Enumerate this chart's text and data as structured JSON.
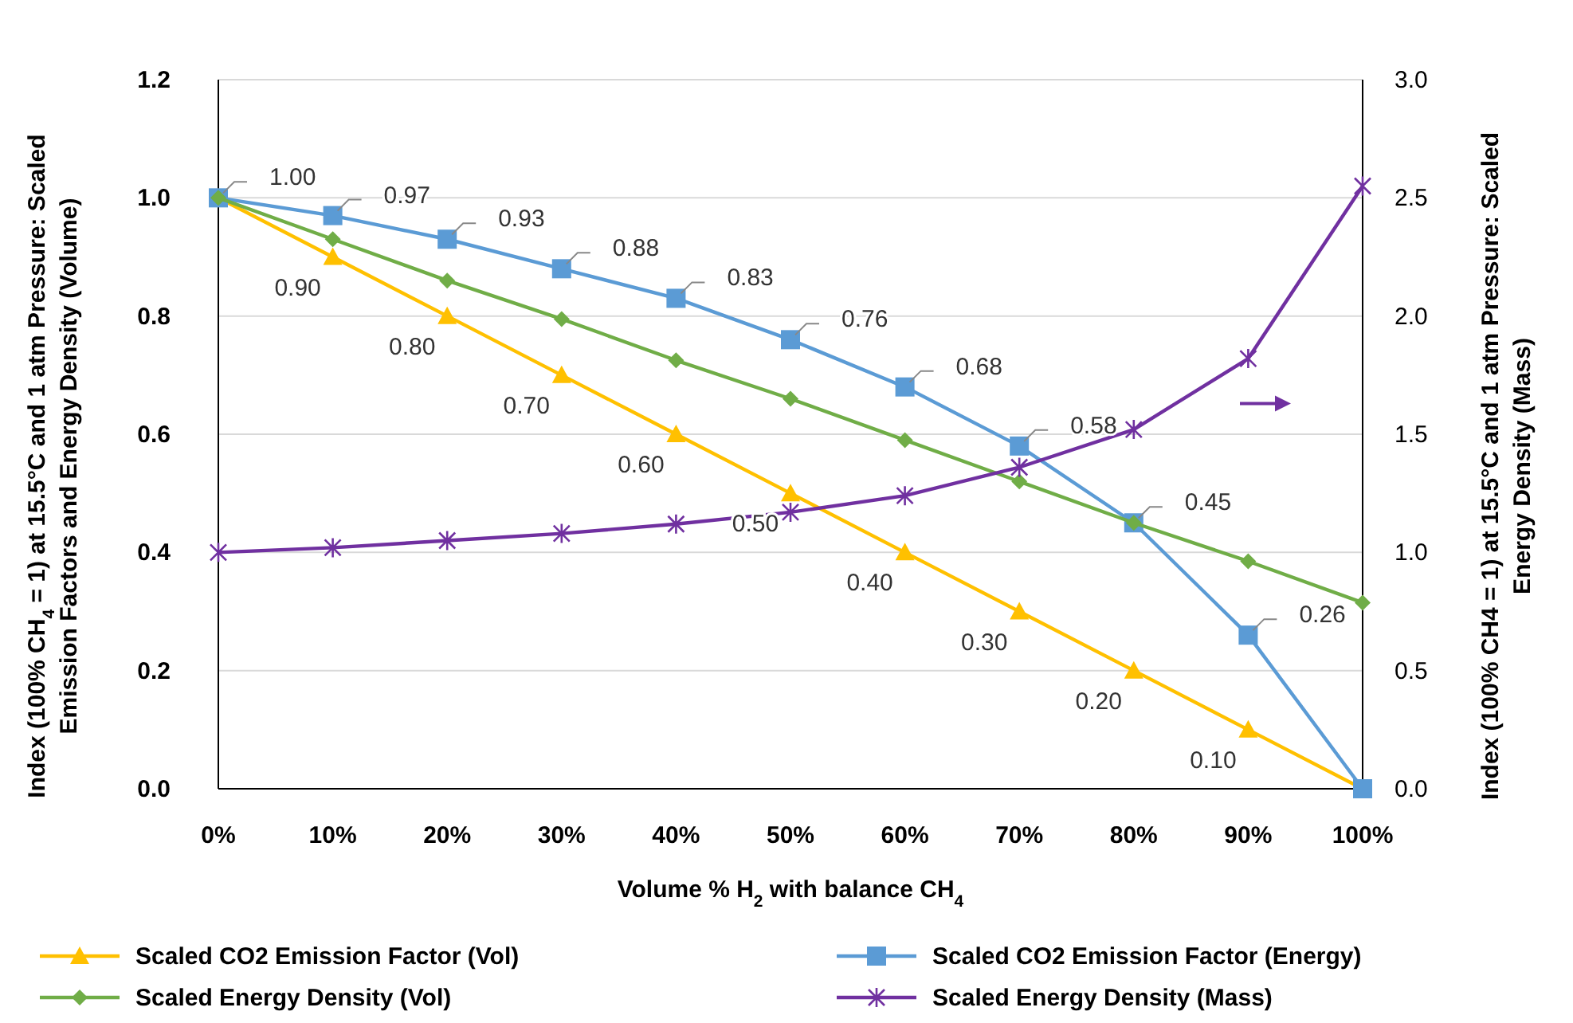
{
  "chart_data": {
    "type": "line",
    "xlabel": "Volume % H$_{2}$ with balance CH$_{4}$",
    "ylabel": "Index (100% CH$_{4}$ = 1) at 15.5°C and 1 atm Pressure: Scaled Emission Factors and Energy Density (Volume)",
    "y2label": "Index (100% CH4 = 1) at 15.5°C and 1 atm Pressure: Scaled Energy Density (Mass)",
    "categories": [
      "0%",
      "10%",
      "20%",
      "30%",
      "40%",
      "50%",
      "60%",
      "70%",
      "80%",
      "90%",
      "100%"
    ],
    "ylim": [
      0,
      1.2
    ],
    "yticks": [
      {
        "value": 0,
        "label": "0.0"
      },
      {
        "value": 0.2,
        "label": "0.2"
      },
      {
        "value": 0.4,
        "label": "0.4"
      },
      {
        "value": 0.6,
        "label": "0.6"
      },
      {
        "value": 0.8,
        "label": "0.8"
      },
      {
        "value": 1,
        "label": "1.0"
      },
      {
        "value": 1.2,
        "label": "1.2"
      }
    ],
    "y2lim": [
      0,
      3
    ],
    "y2ticks": [
      {
        "value": 0,
        "label": "0.0"
      },
      {
        "value": 0.5,
        "label": "0.5"
      },
      {
        "value": 1,
        "label": "1.0"
      },
      {
        "value": 1.5,
        "label": "1.5"
      },
      {
        "value": 2,
        "label": "2.0"
      },
      {
        "value": 2.5,
        "label": "2.5"
      },
      {
        "value": 3,
        "label": "3.0"
      }
    ],
    "grid": "y",
    "legend": "bottom",
    "series": [
      {
        "name": "Scaled CO2 Emission Factor (Vol)",
        "color": "#ffc000",
        "marker": "triangle",
        "values": [
          1,
          0.9,
          0.8,
          0.7,
          0.6,
          0.5,
          0.4,
          0.3,
          0.2,
          0.1,
          0
        ],
        "value_labels": [
          null,
          "0.90",
          "0.80",
          "0.70",
          "0.60",
          "0.50",
          "0.40",
          "0.30",
          "0.20",
          "0.10",
          null
        ]
      },
      {
        "name": "Scaled CO2 Emission Factor (Energy)",
        "color": "#5b9bd5",
        "marker": "square",
        "values": [
          1,
          0.97,
          0.93,
          0.88,
          0.83,
          0.76,
          0.68,
          0.58,
          0.45,
          0.26,
          0
        ],
        "value_labels": [
          "1.00",
          "0.97",
          "0.93",
          "0.88",
          "0.83",
          "0.76",
          "0.68",
          "0.58",
          "0.45",
          "0.26",
          null
        ]
      },
      {
        "name": "Scaled Energy Density (Vol)",
        "color": "#70ad47",
        "marker": "diamond",
        "values": [
          1,
          0.93,
          0.86,
          0.795,
          0.725,
          0.66,
          0.59,
          0.52,
          0.45,
          0.385,
          0.315
        ]
      },
      {
        "name": "Scaled Energy Density (Mass)",
        "color": "#7030a0",
        "marker": "cross",
        "axis": "y2",
        "values": [
          1,
          1.02,
          1.05,
          1.08,
          1.12,
          1.17,
          1.24,
          1.36,
          1.52,
          1.82,
          2.55
        ]
      }
    ]
  }
}
